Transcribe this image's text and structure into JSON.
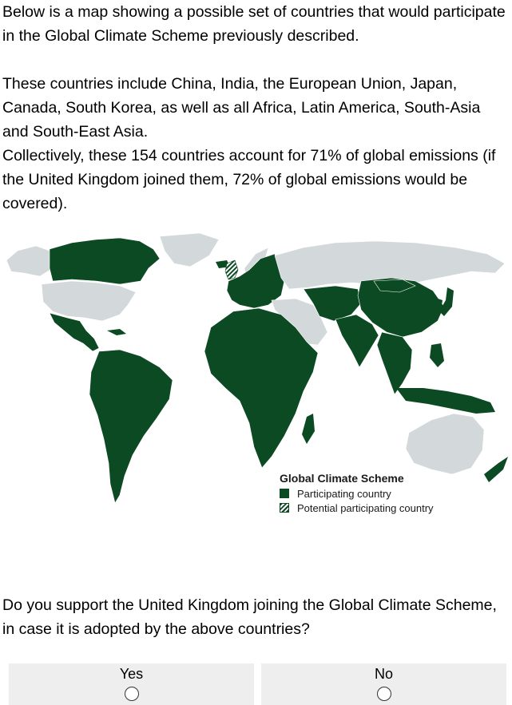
{
  "intro": {
    "para1": "Below is a map showing a possible set of countries that would participate in the Global Climate Scheme previously described.",
    "para2": "These countries include China, India, the European Union, Japan, Canada, South Korea, as well as all Africa, Latin America, South-Asia and South-East Asia.",
    "para3": "Collectively, these 154 countries account for 71% of global emissions (if the United Kingdom joined them, 72% of global emissions would be covered)."
  },
  "map": {
    "legend_title": "Global Climate Scheme",
    "legend_participating": "Participating country",
    "legend_potential": "Potential participating country",
    "colors": {
      "participating": "#0b4a22",
      "non_participating": "#d3d8da",
      "background": "#ffffff"
    }
  },
  "question": {
    "text": "Do you support the United Kingdom joining the Global Climate Scheme, in case it is adopted by the above countries?"
  },
  "options": [
    {
      "label": "Yes",
      "selected": false
    },
    {
      "label": "No",
      "selected": false
    }
  ]
}
